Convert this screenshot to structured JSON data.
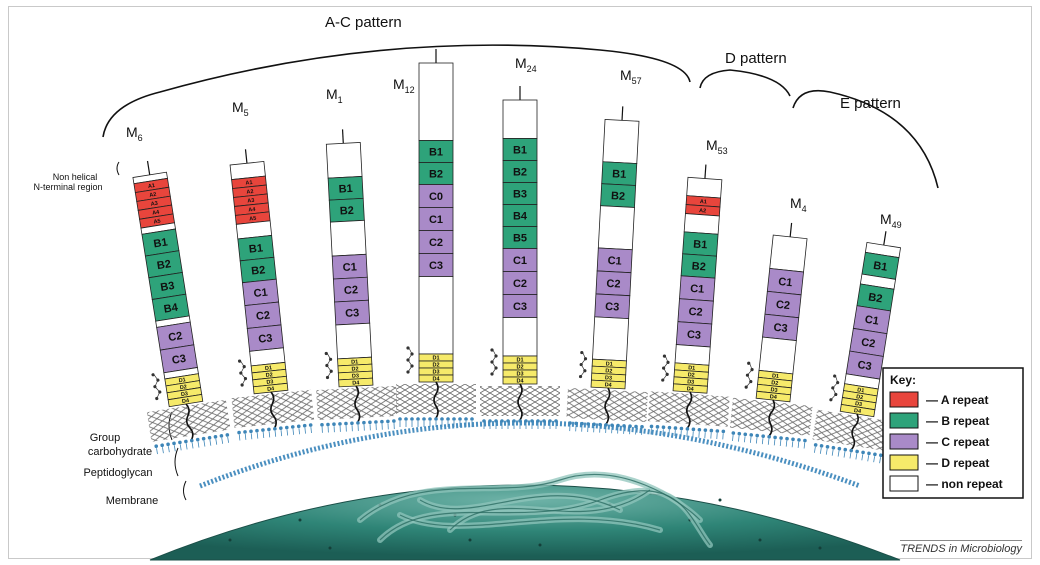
{
  "patterns": {
    "ac": "A-C pattern",
    "d": "D pattern",
    "e": "E pattern"
  },
  "side_labels": {
    "nterm_line1": "Non helical",
    "nterm_line2": "N-terminal region",
    "group_line1": "Group",
    "group_line2": "carbohydrate",
    "peptidoglycan": "Peptidoglycan",
    "membrane": "Membrane"
  },
  "key": {
    "title": "Key:",
    "items": [
      {
        "label": "— A repeat",
        "color": "#e8453c"
      },
      {
        "label": "— B repeat",
        "color": "#2ea37a"
      },
      {
        "label": "— C repeat",
        "color": "#a98ac8"
      },
      {
        "label": "— D repeat",
        "color": "#f6ea6a"
      },
      {
        "label": "— non repeat",
        "color": "#ffffff"
      }
    ]
  },
  "colors": {
    "A": "#e8453c",
    "B": "#2ea37a",
    "C": "#a98ac8",
    "D": "#f6ea6a",
    "white": "#ffffff",
    "cell": "#2e7f74"
  },
  "credit": "TRENDS in Microbiology",
  "proteins": [
    {
      "main": "M",
      "sub": "6",
      "segments": [
        {
          "t": "n"
        },
        {
          "t": "A",
          "label": "A1"
        },
        {
          "t": "A",
          "label": "A2"
        },
        {
          "t": "A",
          "label": "A3"
        },
        {
          "t": "A",
          "label": "A4"
        },
        {
          "t": "A",
          "label": "A5"
        },
        {
          "t": "n"
        },
        {
          "t": "B",
          "label": "B1"
        },
        {
          "t": "B",
          "label": "B2"
        },
        {
          "t": "B",
          "label": "B3"
        },
        {
          "t": "B",
          "label": "B4"
        },
        {
          "t": "n"
        },
        {
          "t": "C",
          "label": "C2"
        },
        {
          "t": "C",
          "label": "C3"
        },
        {
          "t": "n"
        },
        {
          "t": "D",
          "label": "D1"
        },
        {
          "t": "D",
          "label": "D2"
        },
        {
          "t": "D",
          "label": "D3"
        },
        {
          "t": "D",
          "label": "D4"
        }
      ]
    },
    {
      "main": "M",
      "sub": "5",
      "segments": [
        {
          "t": "n"
        },
        {
          "t": "A",
          "label": "A1"
        },
        {
          "t": "A",
          "label": "A2"
        },
        {
          "t": "A",
          "label": "A3"
        },
        {
          "t": "A",
          "label": "A4"
        },
        {
          "t": "A",
          "label": "A5"
        },
        {
          "t": "n"
        },
        {
          "t": "B",
          "label": "B1"
        },
        {
          "t": "B",
          "label": "B2"
        },
        {
          "t": "C",
          "label": "C1"
        },
        {
          "t": "C",
          "label": "C2"
        },
        {
          "t": "C",
          "label": "C3"
        },
        {
          "t": "n"
        },
        {
          "t": "D",
          "label": "D1"
        },
        {
          "t": "D",
          "label": "D2"
        },
        {
          "t": "D",
          "label": "D3"
        },
        {
          "t": "D",
          "label": "D4"
        }
      ]
    },
    {
      "main": "M",
      "sub": "1",
      "segments": [
        {
          "t": "n"
        },
        {
          "t": "B",
          "label": "B1"
        },
        {
          "t": "B",
          "label": "B2"
        },
        {
          "t": "n"
        },
        {
          "t": "C",
          "label": "C1"
        },
        {
          "t": "C",
          "label": "C2"
        },
        {
          "t": "C",
          "label": "C3"
        },
        {
          "t": "n"
        },
        {
          "t": "D",
          "label": "D1"
        },
        {
          "t": "D",
          "label": "D2"
        },
        {
          "t": "D",
          "label": "D3"
        },
        {
          "t": "D",
          "label": "D4"
        }
      ]
    },
    {
      "main": "M",
      "sub": "12",
      "segments": [
        {
          "t": "n"
        },
        {
          "t": "B",
          "label": "B1"
        },
        {
          "t": "B",
          "label": "B2"
        },
        {
          "t": "C",
          "label": "C0"
        },
        {
          "t": "C",
          "label": "C1"
        },
        {
          "t": "C",
          "label": "C2"
        },
        {
          "t": "C",
          "label": "C3"
        },
        {
          "t": "n"
        },
        {
          "t": "D",
          "label": "D1"
        },
        {
          "t": "D",
          "label": "D2"
        },
        {
          "t": "D",
          "label": "D3"
        },
        {
          "t": "D",
          "label": "D4"
        }
      ]
    },
    {
      "main": "M",
      "sub": "24",
      "segments": [
        {
          "t": "n"
        },
        {
          "t": "B",
          "label": "B1"
        },
        {
          "t": "B",
          "label": "B2"
        },
        {
          "t": "B",
          "label": "B3"
        },
        {
          "t": "B",
          "label": "B4"
        },
        {
          "t": "B",
          "label": "B5"
        },
        {
          "t": "C",
          "label": "C1"
        },
        {
          "t": "C",
          "label": "C2"
        },
        {
          "t": "C",
          "label": "C3"
        },
        {
          "t": "n"
        },
        {
          "t": "D",
          "label": "D1"
        },
        {
          "t": "D",
          "label": "D2"
        },
        {
          "t": "D",
          "label": "D3"
        },
        {
          "t": "D",
          "label": "D4"
        }
      ]
    },
    {
      "main": "M",
      "sub": "57",
      "segments": [
        {
          "t": "n"
        },
        {
          "t": "B",
          "label": "B1"
        },
        {
          "t": "B",
          "label": "B2"
        },
        {
          "t": "n"
        },
        {
          "t": "C",
          "label": "C1"
        },
        {
          "t": "C",
          "label": "C2"
        },
        {
          "t": "C",
          "label": "C3"
        },
        {
          "t": "n"
        },
        {
          "t": "D",
          "label": "D1"
        },
        {
          "t": "D",
          "label": "D2"
        },
        {
          "t": "D",
          "label": "D3"
        },
        {
          "t": "D",
          "label": "D4"
        }
      ]
    },
    {
      "main": "M",
      "sub": "53",
      "segments": [
        {
          "t": "n"
        },
        {
          "t": "A",
          "label": "A1"
        },
        {
          "t": "A",
          "label": "A2"
        },
        {
          "t": "n"
        },
        {
          "t": "B",
          "label": "B1"
        },
        {
          "t": "B",
          "label": "B2"
        },
        {
          "t": "C",
          "label": "C1"
        },
        {
          "t": "C",
          "label": "C2"
        },
        {
          "t": "C",
          "label": "C3"
        },
        {
          "t": "n"
        },
        {
          "t": "D",
          "label": "D1"
        },
        {
          "t": "D",
          "label": "D2"
        },
        {
          "t": "D",
          "label": "D3"
        },
        {
          "t": "D",
          "label": "D4"
        }
      ]
    },
    {
      "main": "M",
      "sub": "4",
      "segments": [
        {
          "t": "n"
        },
        {
          "t": "C",
          "label": "C1"
        },
        {
          "t": "C",
          "label": "C2"
        },
        {
          "t": "C",
          "label": "C3"
        },
        {
          "t": "n"
        },
        {
          "t": "D",
          "label": "D1"
        },
        {
          "t": "D",
          "label": "D2"
        },
        {
          "t": "D",
          "label": "D3"
        },
        {
          "t": "D",
          "label": "D4"
        }
      ]
    },
    {
      "main": "M",
      "sub": "49",
      "segments": [
        {
          "t": "n"
        },
        {
          "t": "B",
          "label": "B1"
        },
        {
          "t": "n"
        },
        {
          "t": "B",
          "label": "B2"
        },
        {
          "t": "C",
          "label": "C1"
        },
        {
          "t": "C",
          "label": "C2"
        },
        {
          "t": "C",
          "label": "C3"
        },
        {
          "t": "n"
        },
        {
          "t": "D",
          "label": "D1"
        },
        {
          "t": "D",
          "label": "D2"
        },
        {
          "t": "D",
          "label": "D3"
        },
        {
          "t": "D",
          "label": "D4"
        }
      ]
    }
  ]
}
